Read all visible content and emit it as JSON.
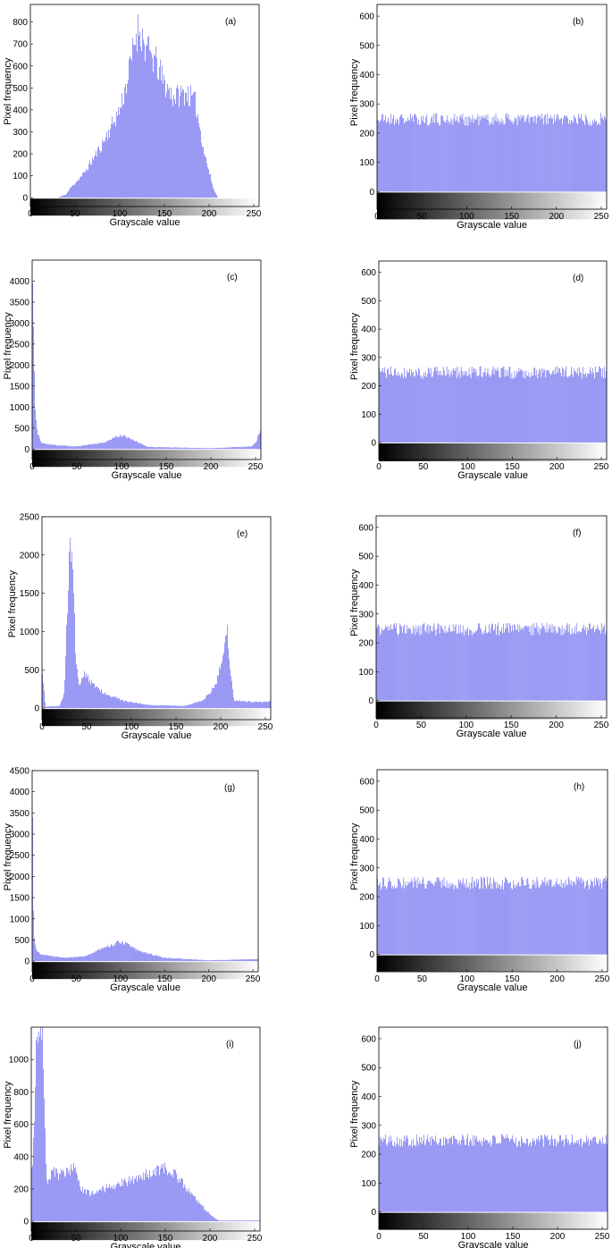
{
  "colors": {
    "bar": "#6f6ff0",
    "frame": "#000000",
    "background": "#ffffff"
  },
  "chart_data": [
    {
      "type": "bar",
      "panel_label": "(a)",
      "xlabel": "Grayscale value",
      "ylabel": "Pixel frequency",
      "xlim": [
        0,
        256
      ],
      "ylim": [
        -40,
        880
      ],
      "xticks": [
        0,
        50,
        100,
        150,
        200,
        250
      ],
      "yticks": [
        0,
        100,
        200,
        300,
        400,
        500,
        600,
        700,
        800
      ],
      "gradient_colorbar": true,
      "profile": [
        [
          0,
          0
        ],
        [
          30,
          0
        ],
        [
          40,
          15
        ],
        [
          45,
          45
        ],
        [
          60,
          110
        ],
        [
          80,
          240
        ],
        [
          100,
          400
        ],
        [
          110,
          560
        ],
        [
          118,
          740
        ],
        [
          122,
          780
        ],
        [
          128,
          690
        ],
        [
          140,
          620
        ],
        [
          150,
          520
        ],
        [
          160,
          460
        ],
        [
          175,
          480
        ],
        [
          185,
          430
        ],
        [
          195,
          200
        ],
        [
          205,
          40
        ],
        [
          210,
          0
        ],
        [
          256,
          0
        ]
      ],
      "seed": 11
    },
    {
      "type": "bar",
      "panel_label": "(b)",
      "xlabel": "Grayscale value",
      "ylabel": "Pixel frequency",
      "xlim": [
        0,
        256
      ],
      "ylim": [
        -60,
        640
      ],
      "xticks": [
        0,
        50,
        100,
        150,
        200,
        250
      ],
      "yticks": [
        0,
        100,
        200,
        300,
        400,
        500,
        600
      ],
      "gradient_colorbar": true,
      "profile": [
        [
          0,
          250
        ],
        [
          256,
          250
        ]
      ],
      "seed": 21
    },
    {
      "type": "bar",
      "panel_label": "(c)",
      "xlabel": "Grayscale value",
      "ylabel": "Pixel frequency",
      "xlim": [
        0,
        256
      ],
      "ylim": [
        -250,
        4500
      ],
      "xticks": [
        0,
        50,
        100,
        150,
        200,
        250
      ],
      "yticks": [
        0,
        500,
        1000,
        1500,
        2000,
        2500,
        3000,
        3500,
        4000
      ],
      "gradient_colorbar": true,
      "profile": [
        [
          0,
          4400
        ],
        [
          1,
          3200
        ],
        [
          2,
          2200
        ],
        [
          3,
          1300
        ],
        [
          4,
          800
        ],
        [
          6,
          400
        ],
        [
          10,
          150
        ],
        [
          20,
          100
        ],
        [
          50,
          60
        ],
        [
          80,
          150
        ],
        [
          95,
          300
        ],
        [
          103,
          330
        ],
        [
          112,
          220
        ],
        [
          130,
          50
        ],
        [
          200,
          20
        ],
        [
          245,
          60
        ],
        [
          250,
          150
        ],
        [
          253,
          300
        ],
        [
          256,
          500
        ]
      ],
      "seed": 31
    },
    {
      "type": "bar",
      "panel_label": "(d)",
      "xlabel": "Grayscale value",
      "ylabel": "Pixel frequency",
      "xlim": [
        0,
        256
      ],
      "ylim": [
        -60,
        640
      ],
      "xticks": [
        0,
        50,
        100,
        150,
        200,
        250
      ],
      "yticks": [
        0,
        100,
        200,
        300,
        400,
        500,
        600
      ],
      "gradient_colorbar": true,
      "profile": [
        [
          0,
          250
        ],
        [
          256,
          250
        ]
      ],
      "seed": 41
    },
    {
      "type": "bar",
      "panel_label": "(e)",
      "xlabel": "Grayscale value",
      "ylabel": "Pixel frequency",
      "xlim": [
        0,
        256
      ],
      "ylim": [
        -150,
        2500
      ],
      "xticks": [
        0,
        50,
        100,
        150,
        200,
        250
      ],
      "yticks": [
        0,
        500,
        1000,
        1500,
        2000,
        2500
      ],
      "gradient_colorbar": true,
      "profile": [
        [
          0,
          550
        ],
        [
          2,
          300
        ],
        [
          4,
          20
        ],
        [
          20,
          30
        ],
        [
          25,
          200
        ],
        [
          29,
          1500
        ],
        [
          32,
          2200
        ],
        [
          35,
          1700
        ],
        [
          38,
          600
        ],
        [
          42,
          300
        ],
        [
          48,
          450
        ],
        [
          55,
          330
        ],
        [
          70,
          200
        ],
        [
          90,
          100
        ],
        [
          120,
          40
        ],
        [
          160,
          30
        ],
        [
          180,
          100
        ],
        [
          195,
          300
        ],
        [
          202,
          700
        ],
        [
          207,
          1050
        ],
        [
          211,
          500
        ],
        [
          215,
          100
        ],
        [
          240,
          80
        ],
        [
          256,
          90
        ]
      ],
      "seed": 51
    },
    {
      "type": "bar",
      "panel_label": "(f)",
      "xlabel": "Grayscale value",
      "ylabel": "Pixel frequency",
      "xlim": [
        0,
        256
      ],
      "ylim": [
        -60,
        640
      ],
      "xticks": [
        0,
        50,
        100,
        150,
        200,
        250
      ],
      "yticks": [
        0,
        100,
        200,
        300,
        400,
        500,
        600
      ],
      "gradient_colorbar": true,
      "profile": [
        [
          0,
          250
        ],
        [
          256,
          250
        ]
      ],
      "seed": 61
    },
    {
      "type": "bar",
      "panel_label": "(g)",
      "xlabel": "Grayscale value",
      "ylabel": "Pixel frequency",
      "xlim": [
        0,
        256
      ],
      "ylim": [
        -250,
        4500
      ],
      "xticks": [
        0,
        50,
        100,
        150,
        200,
        250
      ],
      "yticks": [
        0,
        500,
        1000,
        1500,
        2000,
        2500,
        3000,
        3500,
        4000,
        4500
      ],
      "gradient_colorbar": true,
      "profile": [
        [
          0,
          4400
        ],
        [
          1,
          2000
        ],
        [
          2,
          600
        ],
        [
          4,
          300
        ],
        [
          10,
          150
        ],
        [
          40,
          80
        ],
        [
          60,
          120
        ],
        [
          80,
          300
        ],
        [
          98,
          450
        ],
        [
          105,
          420
        ],
        [
          120,
          250
        ],
        [
          150,
          80
        ],
        [
          200,
          20
        ],
        [
          256,
          50
        ]
      ],
      "seed": 71
    },
    {
      "type": "bar",
      "panel_label": "(h)",
      "xlabel": "Grayscale value",
      "ylabel": "Pixel frequency",
      "xlim": [
        0,
        256
      ],
      "ylim": [
        -60,
        640
      ],
      "xticks": [
        0,
        50,
        100,
        150,
        200,
        250
      ],
      "yticks": [
        0,
        100,
        200,
        300,
        400,
        500,
        600
      ],
      "gradient_colorbar": true,
      "profile": [
        [
          0,
          250
        ],
        [
          256,
          250
        ]
      ],
      "seed": 81
    },
    {
      "type": "bar",
      "panel_label": "(i)",
      "xlabel": "Grayscale value",
      "ylabel": "Pixel frequency",
      "xlim": [
        0,
        256
      ],
      "ylim": [
        -60,
        1200
      ],
      "xticks": [
        0,
        50,
        100,
        150,
        200,
        250
      ],
      "yticks": [
        0,
        200,
        400,
        600,
        800,
        1000
      ],
      "gradient_colorbar": true,
      "profile": [
        [
          0,
          280
        ],
        [
          3,
          500
        ],
        [
          5,
          1000
        ],
        [
          7,
          1200
        ],
        [
          13,
          1200
        ],
        [
          15,
          600
        ],
        [
          18,
          200
        ],
        [
          23,
          330
        ],
        [
          30,
          280
        ],
        [
          40,
          300
        ],
        [
          48,
          330
        ],
        [
          55,
          200
        ],
        [
          70,
          170
        ],
        [
          90,
          220
        ],
        [
          110,
          250
        ],
        [
          130,
          290
        ],
        [
          150,
          330
        ],
        [
          160,
          300
        ],
        [
          175,
          200
        ],
        [
          190,
          100
        ],
        [
          205,
          20
        ],
        [
          210,
          5
        ],
        [
          256,
          5
        ]
      ],
      "seed": 91
    },
    {
      "type": "bar",
      "panel_label": "(j)",
      "xlabel": "Grayscale value",
      "ylabel": "Pixel frequency",
      "xlim": [
        0,
        256
      ],
      "ylim": [
        -60,
        640
      ],
      "xticks": [
        0,
        50,
        100,
        150,
        200,
        250
      ],
      "yticks": [
        0,
        100,
        200,
        300,
        400,
        500,
        600
      ],
      "gradient_colorbar": true,
      "profile": [
        [
          0,
          250
        ],
        [
          256,
          250
        ]
      ],
      "seed": 101
    }
  ]
}
